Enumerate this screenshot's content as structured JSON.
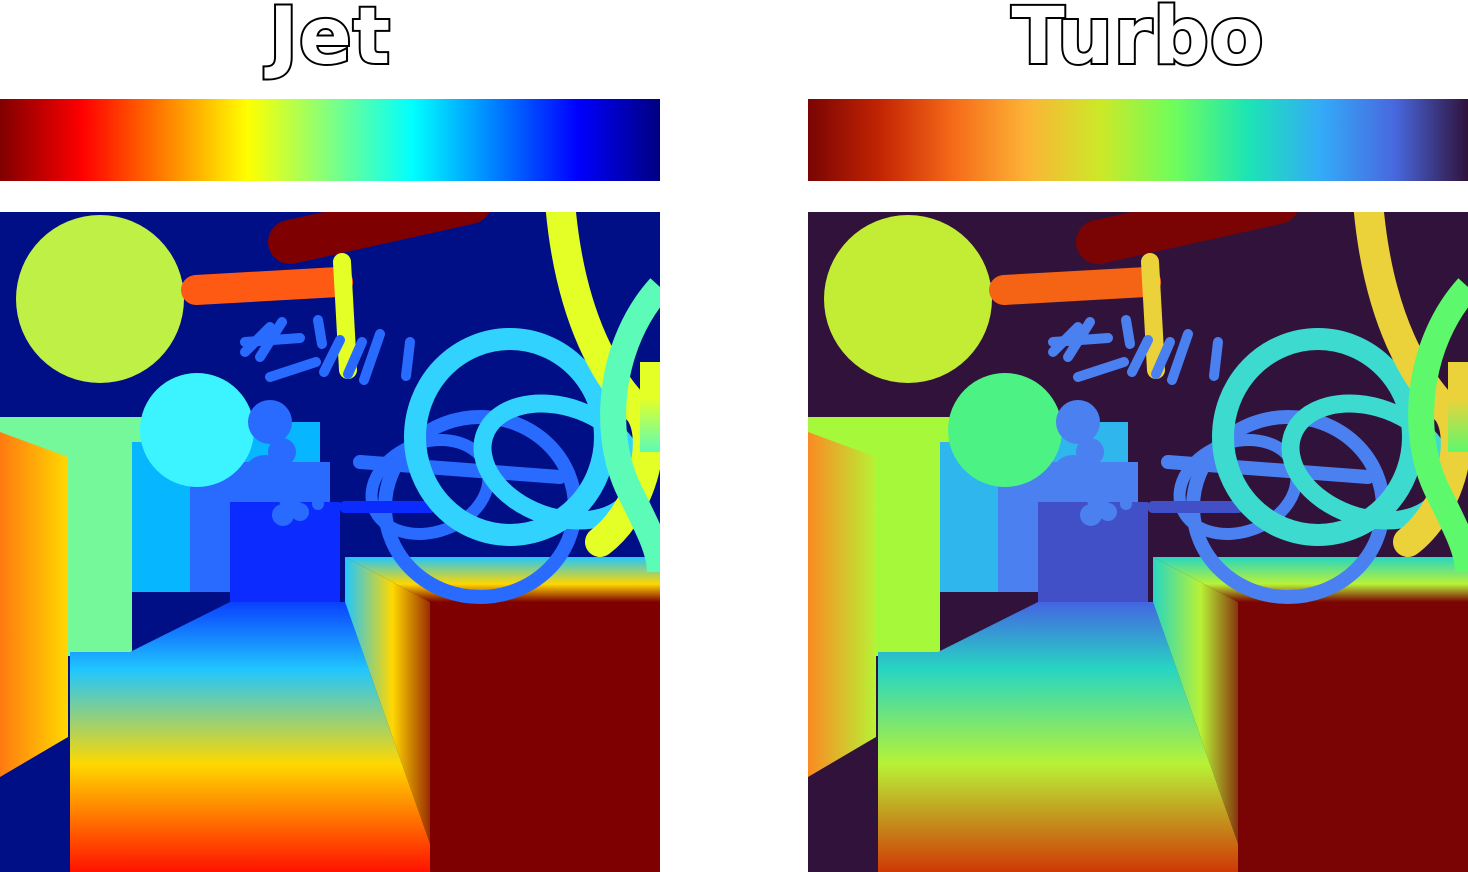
{
  "panels": [
    {
      "id": "jet",
      "title": "Jet",
      "stops": [
        "#800000",
        "#ff0000",
        "#ff8000",
        "#ffff00",
        "#80ff80",
        "#00ffff",
        "#0080ff",
        "#0000ff",
        "#000080"
      ],
      "palette": {
        "background": "#000f86",
        "near": "#7f0000",
        "pipe": "#ff5a14",
        "ball1": "#bff046",
        "ball2": "#3cf4ff",
        "cube_left": "#ff7a10",
        "cube_mid": "#74f89a",
        "cube_back": "#06b6ff",
        "deep": "#2a6bff",
        "far": "#0c2cff",
        "torus": "#32d2ff",
        "arc_high": "#e4ff26",
        "arc_mid": "#5cfcb8",
        "floor_near": "#ff1200",
        "floor_mid": "#ffd800",
        "floor_far": "#20c6ff",
        "floor_end": "#0a40ff"
      }
    },
    {
      "id": "turbo",
      "title": "Turbo",
      "stops": [
        "#7a0403",
        "#c42503",
        "#f66b19",
        "#fcb436",
        "#cbe927",
        "#6efd5c",
        "#1ce4b4",
        "#34aaf8",
        "#4868df",
        "#30123b"
      ],
      "palette": {
        "background": "#30123b",
        "near": "#7a0403",
        "pipe": "#f46414",
        "ball1": "#c2ed34",
        "ball2": "#4cf384",
        "cube_left": "#fb8a22",
        "cube_mid": "#a6f83a",
        "cube_back": "#2fb6ec",
        "deep": "#4a80f0",
        "far": "#4150c6",
        "torus": "#3ddad0",
        "arc_high": "#ecd23a",
        "arc_mid": "#5ef86c",
        "floor_near": "#cf3806",
        "floor_mid": "#b8f236",
        "floor_far": "#27d6c2",
        "floor_end": "#4464e2"
      }
    }
  ]
}
